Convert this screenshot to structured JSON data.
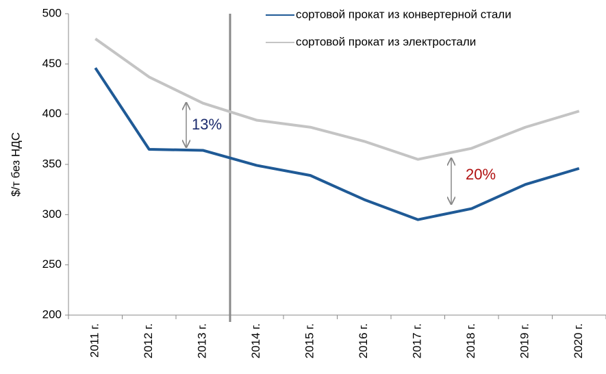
{
  "chart_data": {
    "type": "line",
    "y_label": "$/т без НДС",
    "categories": [
      "2011 г.",
      "2012 г.",
      "2013 г.",
      "2014 г.",
      "2015 г.",
      "2016 г.",
      "2017 г.",
      "2018 г.",
      "2019 г.",
      "2020 г."
    ],
    "series": [
      {
        "name": "сортовой прокат из конвертерной стали",
        "color": "#1f5a96",
        "values": [
          446,
          365,
          364,
          349,
          339,
          315,
          295,
          306,
          330,
          346
        ]
      },
      {
        "name": "сортовой прокат из электростали",
        "color": "#c4c4c4",
        "values": [
          475,
          437,
          411,
          394,
          387,
          373,
          355,
          366,
          387,
          403
        ]
      }
    ],
    "annotations": [
      "13%",
      "20%"
    ],
    "ylim": [
      200,
      500
    ],
    "yticks": [
      200,
      250,
      300,
      350,
      400,
      450,
      500
    ],
    "legend": "top"
  }
}
